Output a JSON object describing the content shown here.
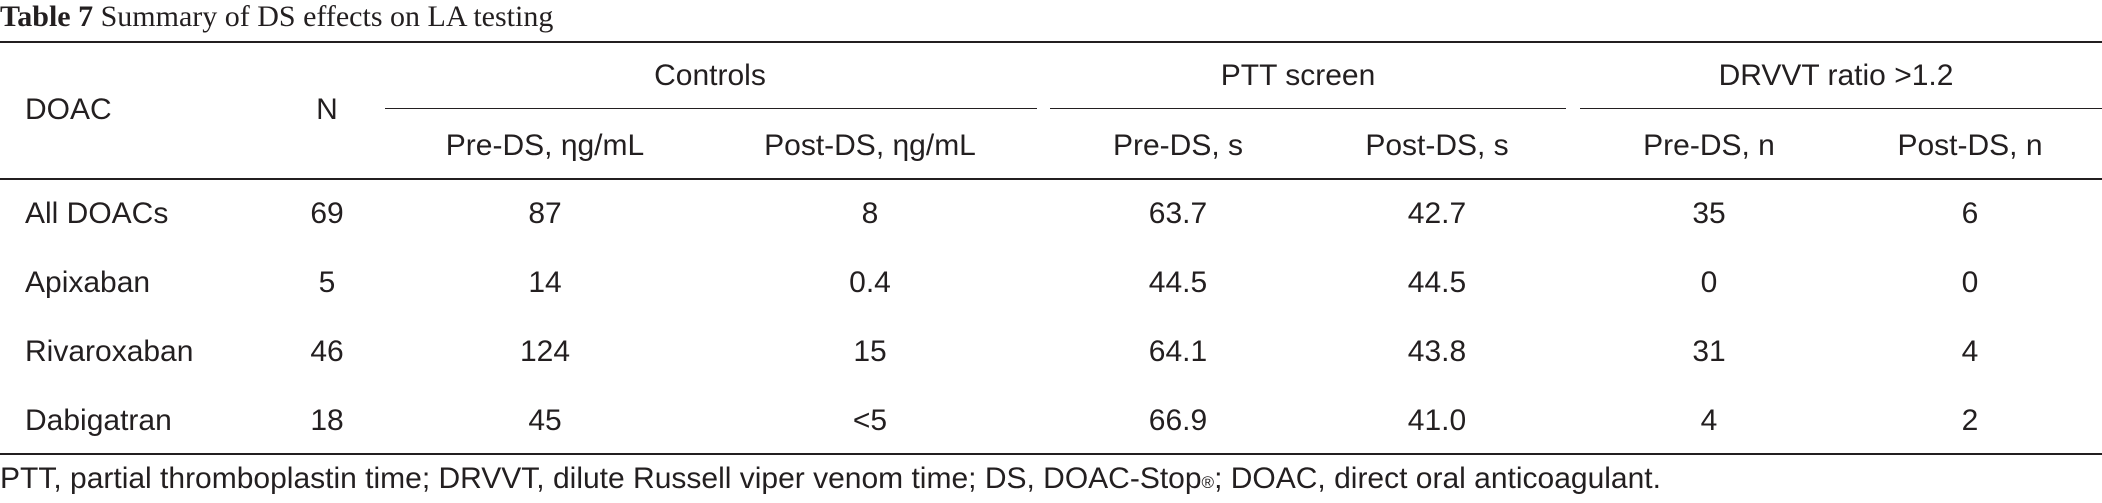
{
  "caption": {
    "label": "Table 7",
    "title": "Summary of DS effects on LA testing"
  },
  "table": {
    "col_doac": "DOAC",
    "col_n": "N",
    "groups": {
      "controls": "Controls",
      "ptt": "PTT screen",
      "drvvt": "DRVVT ratio >1.2"
    },
    "subheaders": {
      "controls_pre": "Pre-DS, ηg/mL",
      "controls_post": "Post-DS, ηg/mL",
      "ptt_pre": "Pre-DS, s",
      "ptt_post": "Post-DS, s",
      "drvvt_pre": "Pre-DS, n",
      "drvvt_post": "Post-DS, n"
    },
    "rows": [
      {
        "doac": "All DOACs",
        "n": "69",
        "controls_pre": "87",
        "controls_post": "8",
        "ptt_pre": "63.7",
        "ptt_post": "42.7",
        "drvvt_pre": "35",
        "drvvt_post": "6"
      },
      {
        "doac": "Apixaban",
        "n": "5",
        "controls_pre": "14",
        "controls_post": "0.4",
        "ptt_pre": "44.5",
        "ptt_post": "44.5",
        "drvvt_pre": "0",
        "drvvt_post": "0"
      },
      {
        "doac": "Rivaroxaban",
        "n": "46",
        "controls_pre": "124",
        "controls_post": "15",
        "ptt_pre": "64.1",
        "ptt_post": "43.8",
        "drvvt_pre": "31",
        "drvvt_post": "4"
      },
      {
        "doac": "Dabigatran",
        "n": "18",
        "controls_pre": "45",
        "controls_post": "<5",
        "ptt_pre": "66.9",
        "ptt_post": "41.0",
        "drvvt_pre": "4",
        "drvvt_post": "2"
      }
    ]
  },
  "footnote": {
    "before_mark": "PTT, partial thromboplastin time; DRVVT, dilute Russell viper venom time; DS, DOAC-Stop",
    "mark": "®",
    "after_mark": "; DOAC, direct oral anticoagulant."
  }
}
